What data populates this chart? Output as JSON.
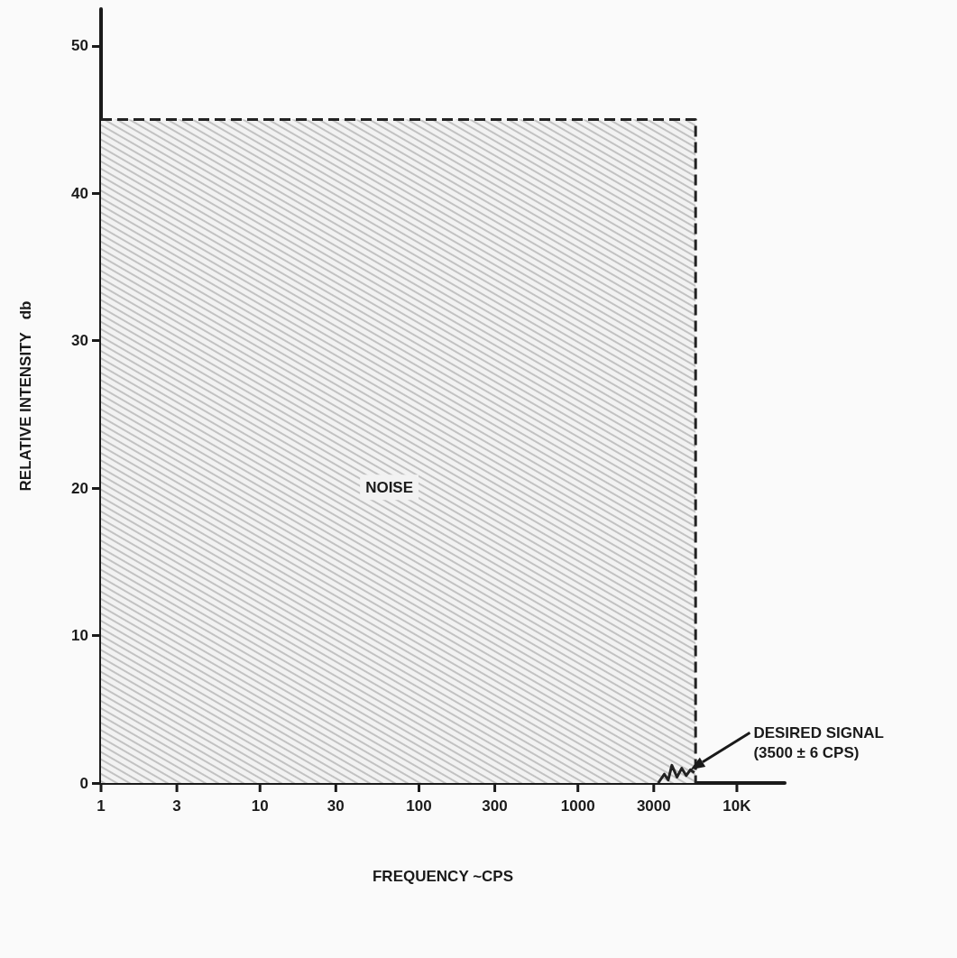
{
  "chart_data": {
    "type": "area",
    "xlabel": "FREQUENCY ~CPS",
    "ylabel": "RELATIVE INTENSITY   db",
    "log": "x",
    "xlim": [
      1,
      20000
    ],
    "xticks": [
      1,
      3,
      10,
      30,
      100,
      300,
      1000,
      3000,
      {
        "value": 10000,
        "label": "10K"
      }
    ],
    "ylim": [
      0,
      52.5
    ],
    "yticks": [
      0,
      10,
      20,
      30,
      40,
      50
    ],
    "grid": false,
    "series": [
      {
        "color": "#222222",
        "line_style": "dashed",
        "x": [
          1,
          5500,
          5500
        ],
        "values": [
          45,
          45,
          0
        ]
      },
      {
        "type": "line",
        "color": "#222222",
        "line_style": "solid",
        "x": [
          3200,
          3500,
          3700,
          3900,
          4200,
          4500,
          4800,
          5100,
          5400
        ],
        "values": [
          0,
          0.6,
          0.2,
          1.2,
          0.4,
          1,
          0.5,
          0.9,
          0.7
        ]
      }
    ],
    "annotations": [
      "NOISE",
      "DESIRED SIGNAL\n(3500 ± 6 CPS)"
    ]
  }
}
